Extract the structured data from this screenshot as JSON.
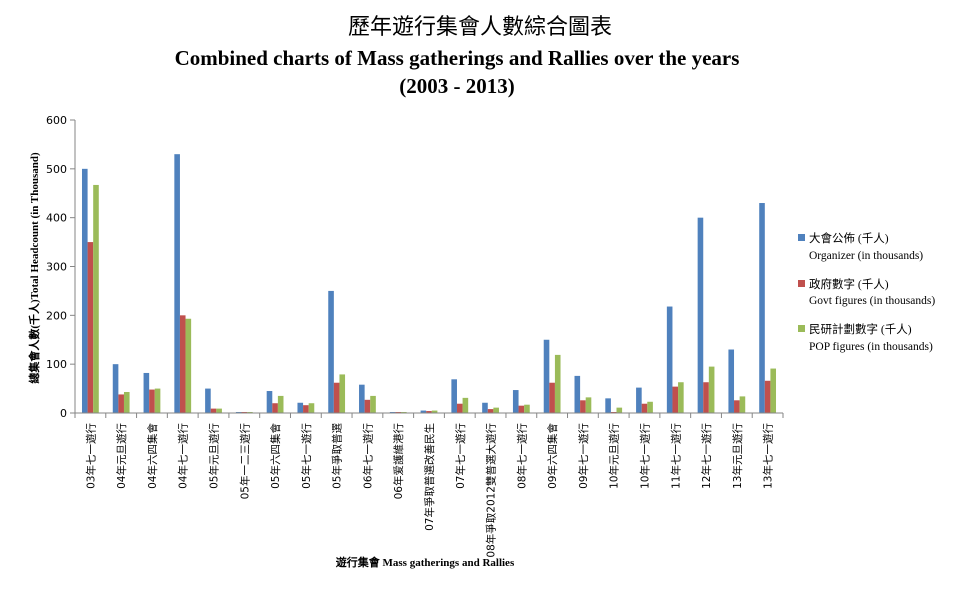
{
  "chart_data": {
    "type": "bar",
    "title_zh": "歷年遊行集會人數綜合圖表",
    "title": "Combined charts of Mass gatherings and Rallies over the years",
    "subtitle": "(2003 - 2013)",
    "xlabel": "遊行集會 Mass gatherings and Rallies",
    "ylabel": "總集會人數(千人)Total Headcount (in Thousand)",
    "ylim": [
      0,
      600
    ],
    "yticks": [
      0,
      100,
      200,
      300,
      400,
      500,
      600
    ],
    "grid": false,
    "legend_position": "right",
    "categories": [
      "03年七一遊行",
      "04年元旦遊行",
      "04年六四集會",
      "04年七一遊行",
      "05年元旦遊行",
      "05年一二三遊行",
      "05年六四集會",
      "05年七一遊行",
      "05年爭取普選",
      "06年七一遊行",
      "06年爱護維港行",
      "07年爭取普選改善民生",
      "07年七一遊行",
      "08年爭取2012雙普選大遊行",
      "08年七一遊行",
      "09年六四集會",
      "09年七一遊行",
      "10年元旦遊行",
      "10年七一遊行",
      "11年七一遊行",
      "12年七一遊行",
      "13年元旦遊行",
      "13年七一遊行"
    ],
    "series": [
      {
        "name": "大會公佈 (千人)",
        "name_en": "Organizer (in thousands)",
        "color": "#4F81BD",
        "values": [
          500,
          100,
          82,
          530,
          50,
          2,
          45,
          21,
          250,
          58,
          2,
          5,
          69,
          21,
          47,
          150,
          76,
          30,
          52,
          218,
          400,
          130,
          430
        ]
      },
      {
        "name": "政府數字 (千人)",
        "name_en": "Govt figures (in thousands)",
        "color": "#C0504D",
        "values": [
          350,
          38,
          48,
          200,
          9,
          2,
          20,
          16,
          62,
          27,
          2,
          4,
          19,
          8,
          15,
          62,
          26,
          2,
          19,
          54,
          63,
          26,
          66
        ]
      },
      {
        "name": "民研計劃數字 (千人)",
        "name_en": "POP figures (in thousands)",
        "color": "#9BBB59",
        "values": [
          467,
          43,
          50,
          193,
          9,
          2,
          35,
          20,
          79,
          35,
          2,
          5,
          31,
          11,
          17,
          119,
          32,
          11,
          23,
          63,
          95,
          34,
          91
        ]
      }
    ]
  }
}
